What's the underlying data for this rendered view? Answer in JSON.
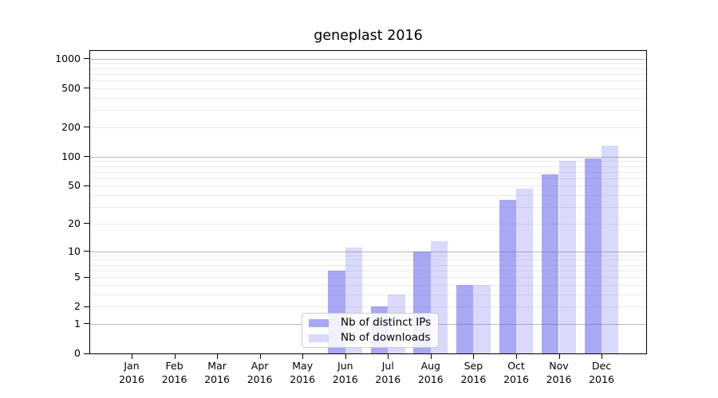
{
  "chart_data": {
    "type": "bar",
    "title": "geneplast 2016",
    "year_label": "2016",
    "categories": [
      "Jan",
      "Feb",
      "Mar",
      "Apr",
      "May",
      "Jun",
      "Jul",
      "Aug",
      "Sep",
      "Oct",
      "Nov",
      "Dec"
    ],
    "series": [
      {
        "name": "Nb of distinct IPs",
        "color": "rgba(102,102,238,0.57)",
        "values": [
          0,
          0,
          0,
          0,
          0,
          6,
          2,
          10,
          4,
          36,
          66,
          96
        ]
      },
      {
        "name": "Nb of downloads",
        "color": "rgba(102,102,238,0.25)",
        "values": [
          0,
          0,
          0,
          0,
          0,
          11,
          3,
          13,
          4,
          47,
          90,
          130
        ]
      }
    ],
    "xlabel": "",
    "ylabel": "",
    "yticks": [
      0,
      1,
      2,
      5,
      10,
      20,
      50,
      100,
      200,
      500,
      1000
    ],
    "ylim": [
      0,
      1200
    ],
    "scale": "log1p",
    "grid": "horizontal, log-decade majors with log minors",
    "legend_position": "bottom-center",
    "colors": {
      "major_grid": "#b8b8b8",
      "minor_grid": "#ebebeb",
      "axis": "#000000",
      "background": "#ffffff"
    }
  }
}
